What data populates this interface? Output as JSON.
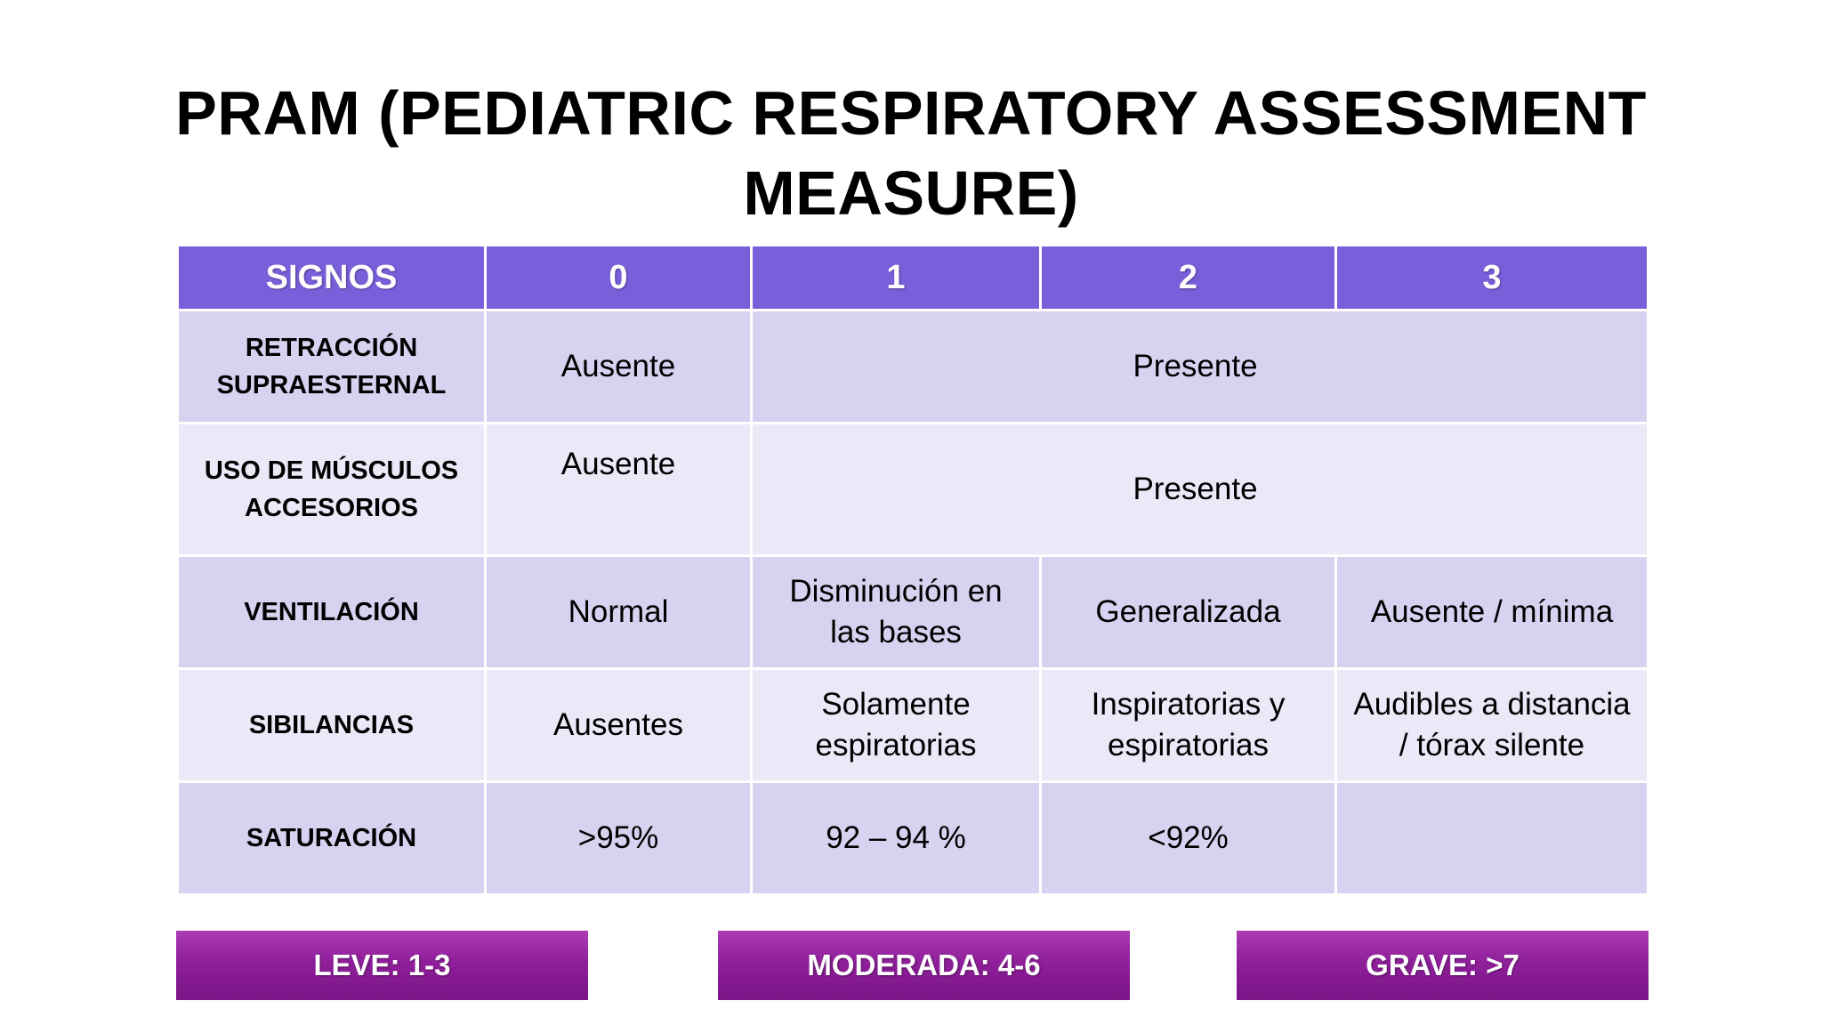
{
  "title": {
    "line1": "PRAM (PEDIATRIC RESPIRATORY ASSESSMENT",
    "line2": "MEASURE)"
  },
  "table": {
    "headers": [
      "SIGNOS",
      "0",
      "1",
      "2",
      "3"
    ],
    "rows": [
      {
        "sign_line1": "RETRACCIÓN",
        "sign_line2": "SUPRAESTERNAL",
        "score0": "Ausente",
        "score1_3": "Presente"
      },
      {
        "sign_line1": "USO DE MÚSCULOS",
        "sign_line2": "ACCESORIOS",
        "score0": "Ausente",
        "score1_3": "Presente"
      },
      {
        "sign": "VENTILACIÓN",
        "score0": "Normal",
        "score1_line1": "Disminución en",
        "score1_line2": "las bases",
        "score2": "Generalizada",
        "score3": "Ausente / mínima"
      },
      {
        "sign": "SIBILANCIAS",
        "score0": "Ausentes",
        "score1_line1": "Solamente",
        "score1_line2": "espiratorias",
        "score2_line1": "Inspiratorias y",
        "score2_line2": "espiratorias",
        "score3_line1": "Audibles a distancia",
        "score3_line2": "/ tórax silente"
      },
      {
        "sign": "SATURACIÓN",
        "score0": ">95%",
        "score1": "92 – 94 %",
        "score2": "<92%",
        "score3": ""
      }
    ]
  },
  "severity": [
    {
      "label": "LEVE: 1-3"
    },
    {
      "label": "MODERADA: 4-6"
    },
    {
      "label": "GRAVE: >7"
    }
  ],
  "colors": {
    "header_bg": "#7a5fdb",
    "row_dark": "#d8d2f0",
    "row_light": "#ebe8f7",
    "severity_bg": "#8f1f9a"
  }
}
